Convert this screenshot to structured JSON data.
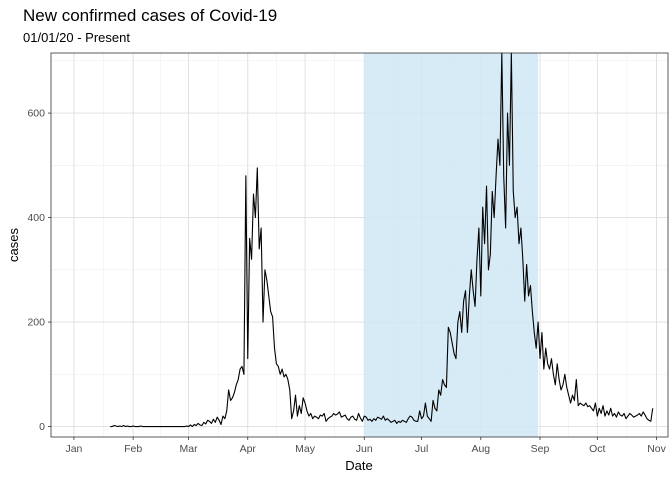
{
  "chart_data": {
    "type": "line",
    "title": "New confirmed cases of Covid-19",
    "subtitle": "01/01/20 - Present",
    "xlabel": "Date",
    "ylabel": "cases",
    "x_start": "2020-01-20",
    "x_step": "1 day",
    "xlim": [
      "2019-12-20",
      "2020-11-07"
    ],
    "ylim": [
      -20,
      715
    ],
    "y_ticks": [
      0,
      200,
      400,
      600
    ],
    "x_ticks": [
      {
        "date": "2020-01-01",
        "label": "Jan"
      },
      {
        "date": "2020-02-01",
        "label": "Feb"
      },
      {
        "date": "2020-03-01",
        "label": "Mar"
      },
      {
        "date": "2020-04-01",
        "label": "Apr"
      },
      {
        "date": "2020-05-01",
        "label": "May"
      },
      {
        "date": "2020-06-01",
        "label": "Jun"
      },
      {
        "date": "2020-07-01",
        "label": "Jul"
      },
      {
        "date": "2020-08-01",
        "label": "Aug"
      },
      {
        "date": "2020-09-01",
        "label": "Sep"
      },
      {
        "date": "2020-10-01",
        "label": "Oct"
      },
      {
        "date": "2020-11-01",
        "label": "Nov"
      }
    ],
    "highlight": {
      "start": "2020-06-01",
      "end": "2020-08-31",
      "color": "#cfe8f5"
    },
    "grid": true,
    "line_color": "#000000",
    "values": [
      0,
      0,
      2,
      1,
      0,
      1,
      0,
      2,
      0,
      1,
      0,
      0,
      1,
      0,
      0,
      0,
      1,
      0,
      0,
      0,
      0,
      0,
      0,
      0,
      0,
      0,
      0,
      0,
      0,
      0,
      0,
      0,
      0,
      0,
      0,
      0,
      0,
      0,
      0,
      0,
      1,
      0,
      3,
      0,
      4,
      2,
      6,
      3,
      2,
      8,
      5,
      12,
      10,
      6,
      14,
      8,
      18,
      12,
      4,
      20,
      15,
      30,
      70,
      50,
      55,
      65,
      80,
      90,
      110,
      115,
      100,
      480,
      130,
      360,
      320,
      445,
      400,
      495,
      340,
      380,
      200,
      300,
      280,
      250,
      220,
      210,
      150,
      120,
      115,
      100,
      110,
      95,
      100,
      90,
      70,
      15,
      30,
      60,
      20,
      40,
      25,
      55,
      45,
      30,
      20,
      25,
      15,
      20,
      18,
      15,
      22,
      20,
      25,
      10,
      15,
      18,
      20,
      25,
      22,
      24,
      28,
      18,
      20,
      22,
      15,
      12,
      18,
      20,
      14,
      12,
      25,
      16,
      10,
      20,
      18,
      12,
      14,
      10,
      15,
      12,
      18,
      16,
      14,
      20,
      12,
      15,
      12,
      8,
      10,
      12,
      6,
      10,
      8,
      12,
      10,
      8,
      15,
      20,
      18,
      12,
      10,
      10,
      30,
      15,
      20,
      45,
      20,
      15,
      10,
      50,
      35,
      30,
      70,
      60,
      90,
      80,
      75,
      190,
      180,
      160,
      140,
      130,
      200,
      220,
      180,
      240,
      260,
      180,
      250,
      300,
      260,
      230,
      320,
      380,
      250,
      420,
      350,
      460,
      300,
      330,
      450,
      400,
      480,
      550,
      500,
      715,
      480,
      380,
      600,
      500,
      715,
      450,
      400,
      420,
      350,
      380,
      320,
      240,
      310,
      250,
      270,
      220,
      180,
      150,
      200,
      130,
      180,
      110,
      150,
      120,
      110,
      130,
      100,
      80,
      120,
      90,
      70,
      80,
      100,
      75,
      60,
      45,
      60,
      50,
      90,
      40,
      45,
      42,
      40,
      45,
      38,
      40,
      35,
      30,
      45,
      20,
      35,
      25,
      40,
      20,
      30,
      22,
      35,
      20,
      25,
      18,
      28,
      22,
      20,
      25,
      15,
      20,
      25,
      22,
      18,
      20,
      22,
      25,
      20,
      28,
      22,
      15,
      12,
      10,
      35
    ],
    "series_name": "cases"
  }
}
